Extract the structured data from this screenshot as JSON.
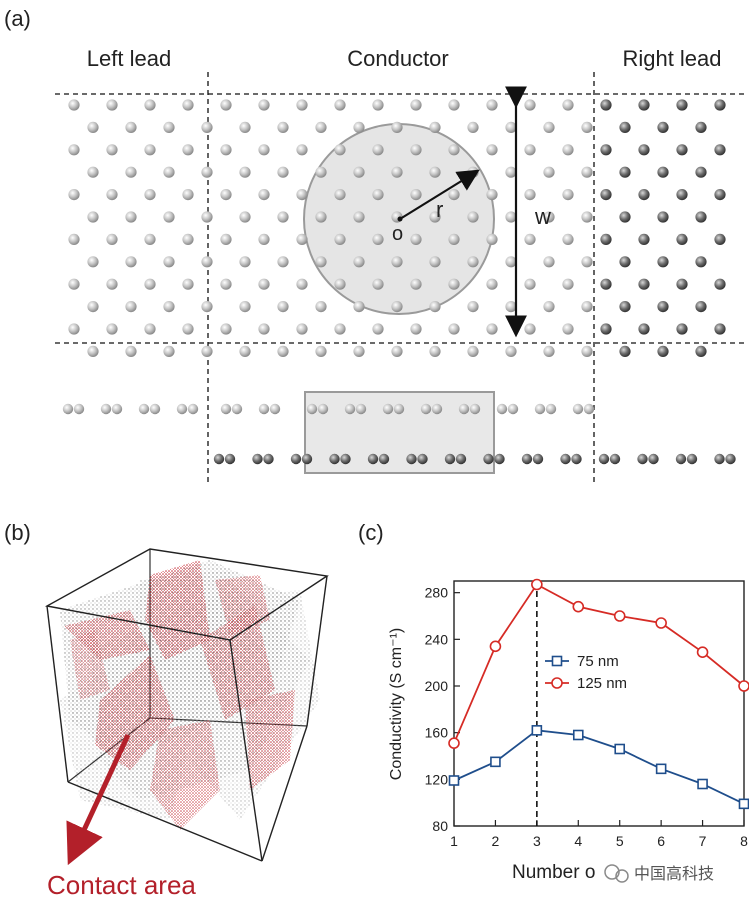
{
  "panel_a": {
    "label": "(a)",
    "left_lead": "Left lead",
    "conductor": "Conductor",
    "right_lead": "Right lead",
    "radius_symbol": "r",
    "center_symbol": "o",
    "width_symbol": "w"
  },
  "panel_b": {
    "label": "(b)",
    "annotation": "Contact area",
    "accent_color": "#b3202a"
  },
  "panel_c": {
    "label": "(c)",
    "watermark": "中国高科技"
  },
  "chart_data": {
    "type": "line",
    "xlabel": "Number of layers",
    "xlabel_visible": "Number o",
    "ylabel": "Conductivity (S cm⁻¹)",
    "x": [
      1,
      2,
      3,
      4,
      5,
      6,
      7,
      8
    ],
    "xlim": [
      1,
      8
    ],
    "ylim": [
      80,
      290
    ],
    "xticks": [
      "1",
      "2",
      "3",
      "4",
      "5",
      "6",
      "7",
      "8"
    ],
    "yticks": [
      80,
      120,
      160,
      200,
      240,
      280
    ],
    "series": [
      {
        "name": "75 nm",
        "marker": "square",
        "color": "#1f4e8c",
        "values": [
          119,
          135,
          162,
          158,
          146,
          129,
          116,
          99
        ]
      },
      {
        "name": "125 nm",
        "marker": "circle",
        "color": "#d62b25",
        "values": [
          151,
          234,
          287,
          268,
          260,
          254,
          229,
          200
        ]
      }
    ],
    "vline_x": 3,
    "legend": "center-right",
    "grid": false
  }
}
